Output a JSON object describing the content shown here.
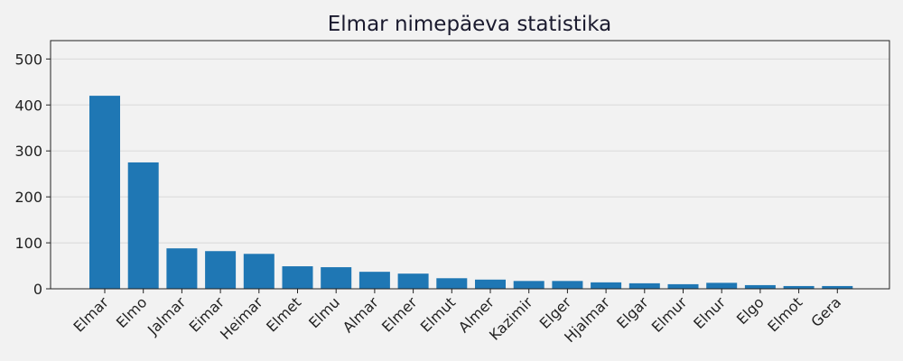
{
  "chart_data": {
    "type": "bar",
    "title": "Elmar nimepäeva statistika",
    "xlabel": "",
    "ylabel": "",
    "categories": [
      "Elmar",
      "Elmo",
      "Jalmar",
      "Eimar",
      "Heimar",
      "Elmet",
      "Elmu",
      "Almar",
      "Elmer",
      "Elmut",
      "Almer",
      "Kazimir",
      "Elger",
      "Hjalmar",
      "Elgar",
      "Elmur",
      "Elnur",
      "Elgo",
      "Elmot",
      "Gera"
    ],
    "values": [
      420,
      275,
      88,
      82,
      76,
      49,
      47,
      37,
      33,
      23,
      20,
      17,
      17,
      14,
      12,
      10,
      13,
      8,
      6,
      6
    ],
    "ylim": [
      0,
      540
    ],
    "yticks": [
      0,
      100,
      200,
      300,
      400,
      500
    ],
    "grid": "y",
    "bar_color": "#1f77b4",
    "background": "#f2f2f2"
  }
}
